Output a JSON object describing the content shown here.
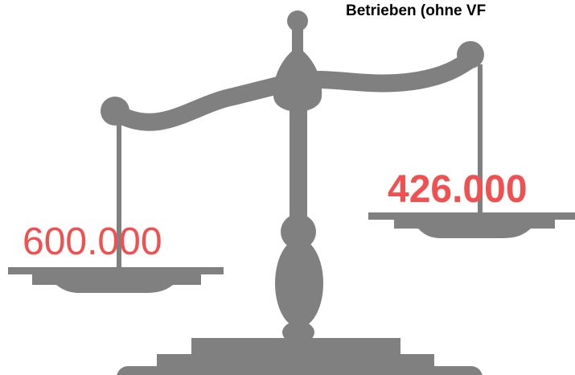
{
  "header": {
    "title": "Betrieben (ohne VF"
  },
  "scale": {
    "left_value": "600.000",
    "right_value": "426.000"
  }
}
